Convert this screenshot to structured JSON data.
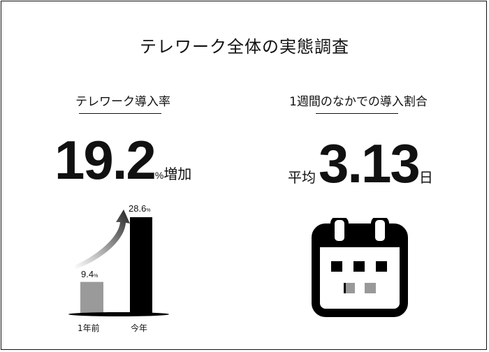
{
  "title": "テレワーク全体の実態調査",
  "left_panel": {
    "label": "テレワーク導入率",
    "value": "19.2",
    "unit": "%",
    "suffix": "増加"
  },
  "right_panel": {
    "label": "1週間のなかでの導入割合",
    "prefix": "平均",
    "value": "3.13",
    "suffix": "日"
  },
  "chart_data": {
    "type": "bar",
    "categories": [
      "1年前",
      "今年"
    ],
    "values": [
      9.4,
      28.6
    ],
    "value_labels": [
      "9.4",
      "28.6"
    ],
    "value_unit": "%",
    "colors": [
      "#9a9a9a",
      "#000000"
    ]
  },
  "icon": "calendar-icon"
}
